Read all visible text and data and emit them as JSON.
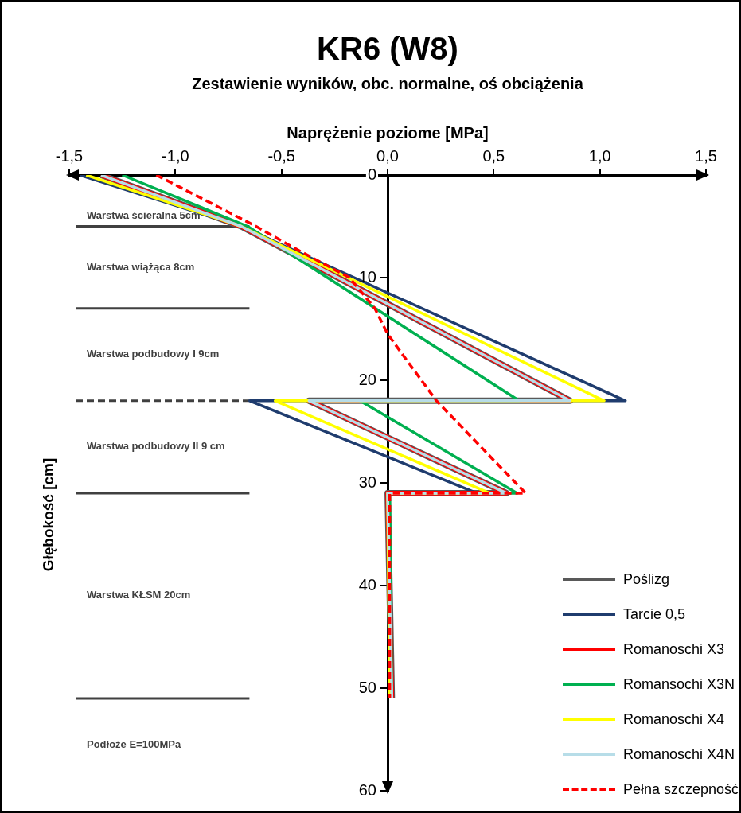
{
  "chart_data": {
    "type": "line",
    "title": "KR6 (W8)",
    "subtitle": "Zestawienie wyników, obc. normalne, oś obciążenia",
    "xlabel": "Naprężenie poziome [MPa]",
    "ylabel": "Głębokość [cm]",
    "xlim": [
      -1.5,
      1.5
    ],
    "xticks": [
      {
        "value": -1.5,
        "label": "-1,5"
      },
      {
        "value": -1,
        "label": "-1,0"
      },
      {
        "value": -0.5,
        "label": "-0,5"
      },
      {
        "value": 0,
        "label": "0,0"
      },
      {
        "value": 0.5,
        "label": "0,5"
      },
      {
        "value": 1,
        "label": "1,0"
      },
      {
        "value": 1.5,
        "label": "1,5"
      }
    ],
    "ylim": [
      60,
      0
    ],
    "yticks": [
      0,
      10,
      20,
      30,
      40,
      50,
      60
    ],
    "legend": "bottom right",
    "marker": "none",
    "series": [
      {
        "name": "Poślizg",
        "color": "#595959",
        "x": [
          -1.35,
          -0.69,
          0.86,
          -0.37,
          0.56,
          0,
          0.02
        ],
        "values": [
          0,
          5,
          22,
          22,
          31,
          31,
          51
        ]
      },
      {
        "name": "Tarcie 0,5",
        "color": "#1f3c6e",
        "x": [
          -1.45,
          -0.69,
          1.12,
          -0.65,
          0.42,
          0,
          0.02
        ],
        "values": [
          0,
          5,
          22,
          22,
          31,
          31,
          51
        ]
      },
      {
        "name": "Romanoschi X3",
        "color": "#ff0000",
        "x": [
          -1.35,
          -0.69,
          0.86,
          -0.37,
          0.56,
          0,
          0.02
        ],
        "values": [
          0,
          5,
          22,
          22,
          31,
          31,
          51
        ]
      },
      {
        "name": "Romansochi X3N",
        "color": "#00b050",
        "x": [
          -1.25,
          -0.66,
          0.62,
          -0.13,
          0.61,
          0.01,
          0.02
        ],
        "values": [
          0,
          5,
          22,
          22,
          31,
          31,
          51
        ]
      },
      {
        "name": "Romanoschi X4",
        "color": "#ffff00",
        "x": [
          -1.42,
          -0.69,
          1.02,
          -0.53,
          0.48,
          0,
          0.01
        ],
        "values": [
          0,
          5,
          22,
          22,
          31,
          31,
          51
        ]
      },
      {
        "name": "Romanoschi X4N",
        "color": "#b7dde8",
        "x": [
          -1.35,
          -0.69,
          0.86,
          -0.37,
          0.56,
          0,
          0.02
        ],
        "values": [
          0,
          5,
          22,
          22,
          31,
          31,
          51
        ]
      },
      {
        "name": "Pełna szczepność",
        "color": "#ff0000",
        "line_style": "dashed",
        "x": [
          -1.09,
          -0.62,
          -0.45,
          -0.18,
          -0.06,
          0,
          0.23,
          0.65,
          0.01,
          0.01
        ],
        "values": [
          0,
          5,
          7,
          10,
          13,
          15.5,
          22,
          31,
          31,
          51
        ]
      }
    ],
    "annotations": [
      "Warstwa ścieralna 5cm",
      "Warstwa wiążąca 8cm",
      "Warstwa podbudowy I 9cm",
      "Warstwa podbudowy II 9 cm",
      "Warstwa KŁSM 20cm",
      "Podłoże E=100MPa"
    ],
    "ref_lines": [
      {
        "axis": "y",
        "value": 5,
        "color": "#404040"
      },
      {
        "axis": "y",
        "value": 13,
        "color": "#404040"
      },
      {
        "axis": "y",
        "value": 22,
        "color": "#404040",
        "line_style": "dashed"
      },
      {
        "axis": "y",
        "value": 31,
        "color": "#404040"
      },
      {
        "axis": "y",
        "value": 51,
        "color": "#404040"
      }
    ]
  }
}
